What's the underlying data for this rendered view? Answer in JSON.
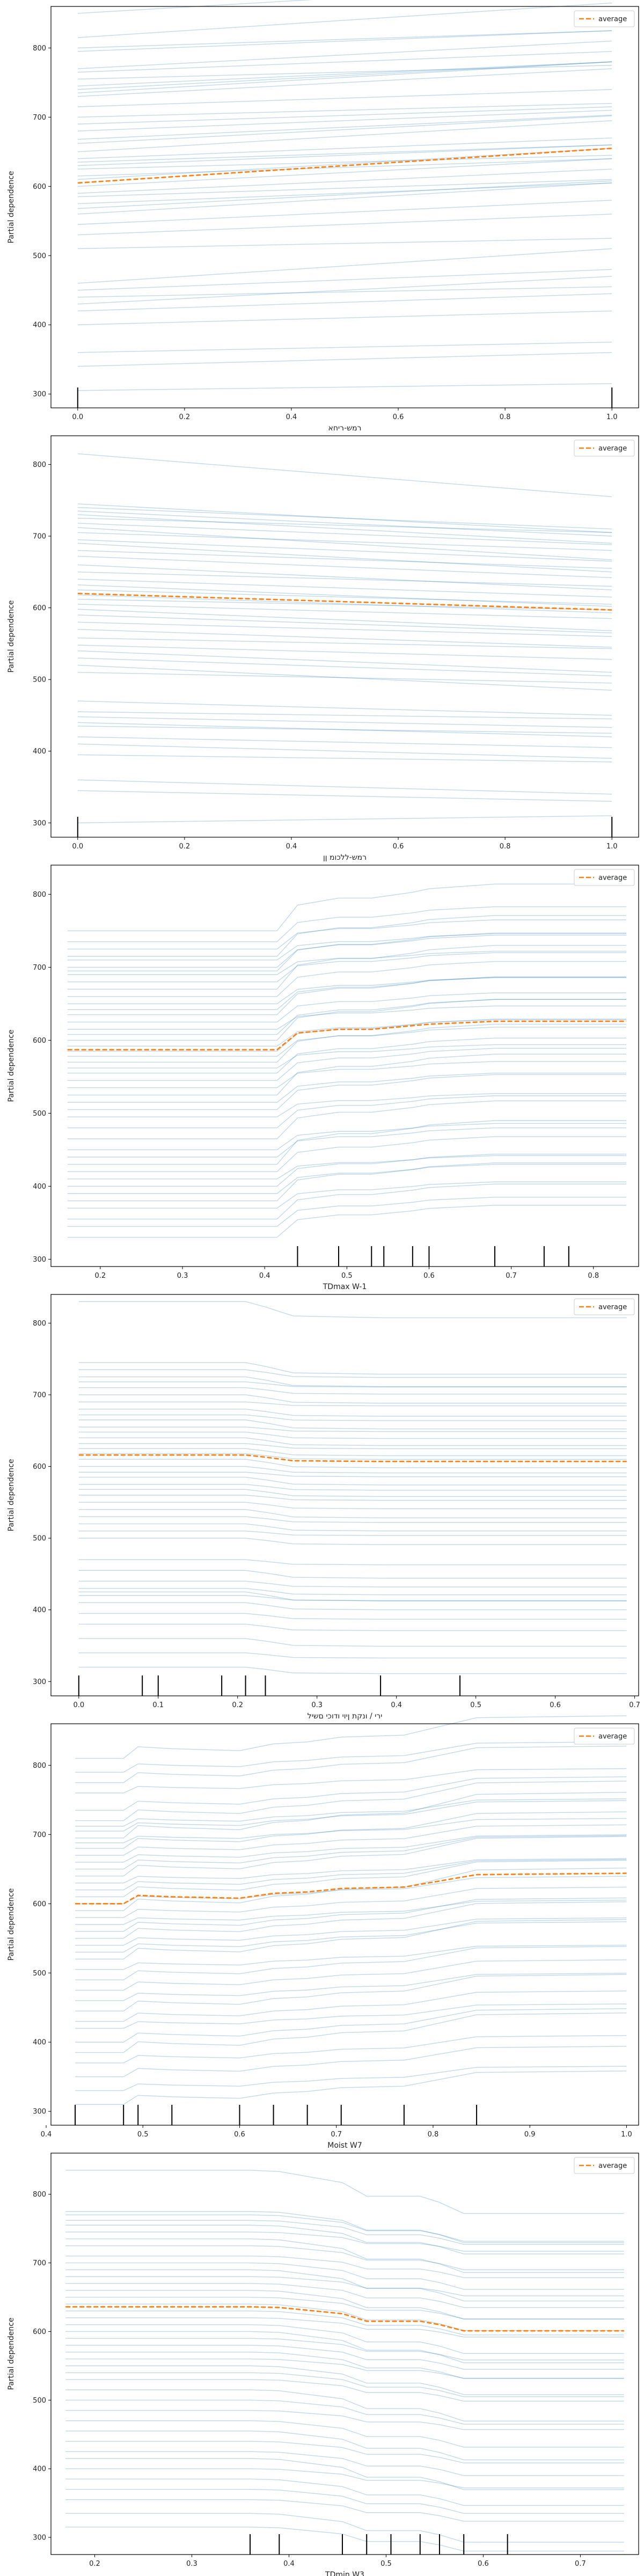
{
  "figure": {
    "background": "#ffffff"
  },
  "colors": {
    "ice": "#1f77b4",
    "average": "#ff7f0e",
    "rug": "#000000",
    "frame": "#000000"
  },
  "chart_data": [
    {
      "type": "line",
      "xlabel": "רמש-ריחא",
      "ylabel": "Partial dependence",
      "xlim": [
        -0.05,
        1.05
      ],
      "ylim": [
        280,
        860
      ],
      "xticks": [
        0.0,
        0.2,
        0.4,
        0.6,
        0.8,
        1.0
      ],
      "xtick_labels": [
        "0.0",
        "0.2",
        "0.4",
        "0.6",
        "0.8",
        "1.0"
      ],
      "yticks": [
        300,
        400,
        500,
        600,
        700,
        800
      ],
      "ytick_labels": [
        "300",
        "400",
        "500",
        "600",
        "700",
        "800"
      ],
      "legend": {
        "entries": [
          "average"
        ],
        "placement": "top-right"
      },
      "x": [
        0.0,
        1.0
      ],
      "ice_start": [
        850,
        815,
        800,
        795,
        770,
        765,
        755,
        745,
        740,
        735,
        730,
        715,
        700,
        690,
        680,
        668,
        662,
        650,
        640,
        635,
        630,
        625,
        615,
        610,
        600,
        590,
        585,
        575,
        568,
        560,
        545,
        530,
        510,
        460,
        450,
        440,
        430,
        420,
        400,
        360,
        340,
        305
      ],
      "ice_slope": [
        45,
        50,
        25,
        30,
        40,
        30,
        20,
        35,
        40,
        45,
        40,
        25,
        20,
        25,
        30,
        35,
        40,
        45,
        30,
        25,
        30,
        20,
        25,
        45,
        40,
        35,
        25,
        30,
        40,
        45,
        35,
        30,
        15,
        50,
        30,
        15,
        40,
        25,
        20,
        15,
        20,
        10
      ],
      "average": [
        605,
        655
      ],
      "rug": [
        0.0,
        1.0
      ]
    },
    {
      "type": "line",
      "xlabel": "רמש-ללכומ ןן",
      "ylabel": "Partial dependence",
      "xlim": [
        -0.05,
        1.05
      ],
      "ylim": [
        280,
        840
      ],
      "xticks": [
        0.0,
        0.2,
        0.4,
        0.6,
        0.8,
        1.0
      ],
      "xtick_labels": [
        "0.0",
        "0.2",
        "0.4",
        "0.6",
        "0.8",
        "1.0"
      ],
      "yticks": [
        300,
        400,
        500,
        600,
        700,
        800
      ],
      "ytick_labels": [
        "300",
        "400",
        "500",
        "600",
        "700",
        "800"
      ],
      "legend": {
        "entries": [
          "average"
        ],
        "placement": "top-right"
      },
      "x": [
        0.0,
        1.0
      ],
      "ice_start": [
        815,
        745,
        740,
        735,
        730,
        725,
        718,
        712,
        705,
        695,
        690,
        680,
        672,
        660,
        650,
        640,
        632,
        625,
        618,
        612,
        605,
        598,
        590,
        580,
        570,
        558,
        548,
        540,
        530,
        520,
        510,
        470,
        455,
        448,
        440,
        435,
        420,
        410,
        395,
        360,
        345,
        300
      ],
      "ice_slope": [
        -60,
        -40,
        -30,
        -35,
        -40,
        -20,
        -30,
        -45,
        -25,
        -30,
        -40,
        -25,
        -30,
        -35,
        -20,
        -25,
        -30,
        -20,
        -25,
        -15,
        -20,
        -30,
        -25,
        -20,
        -25,
        -15,
        -20,
        -30,
        -25,
        -35,
        -15,
        -20,
        -10,
        -15,
        -20,
        -10,
        -15,
        -20,
        -10,
        -20,
        -15,
        10
      ],
      "average": [
        620,
        597
      ],
      "rug": [
        0.0,
        1.0
      ]
    },
    {
      "type": "line",
      "xlabel": "TDmax W-1",
      "ylabel": "Partial dependence",
      "xlim": [
        0.14,
        0.855
      ],
      "ylim": [
        290,
        840
      ],
      "xticks": [
        0.2,
        0.3,
        0.4,
        0.5,
        0.6,
        0.7,
        0.8
      ],
      "xtick_labels": [
        "0.2",
        "0.3",
        "0.4",
        "0.5",
        "0.6",
        "0.7",
        "0.8"
      ],
      "yticks": [
        300,
        400,
        500,
        600,
        700,
        800
      ],
      "ytick_labels": [
        "300",
        "400",
        "500",
        "600",
        "700",
        "800"
      ],
      "legend": {
        "entries": [
          "average"
        ],
        "placement": "top-right"
      },
      "x": [
        0.16,
        0.415,
        0.44,
        0.49,
        0.53,
        0.55,
        0.58,
        0.6,
        0.68,
        0.74,
        0.77,
        0.84
      ],
      "ice_base": [
        750,
        735,
        725,
        715,
        710,
        700,
        695,
        690,
        680,
        670,
        660,
        650,
        642,
        635,
        625,
        615,
        608,
        600,
        592,
        585,
        578,
        570,
        562,
        555,
        545,
        535,
        525,
        515,
        505,
        495,
        480,
        465,
        450,
        440,
        430,
        420,
        410,
        400,
        390,
        380,
        370,
        355,
        345,
        330
      ],
      "ice_shape": [
        0,
        0,
        22,
        28,
        28,
        30,
        33,
        36,
        40,
        40,
        40,
        40
      ],
      "ice_amp": [
        1.6,
        1.2,
        1.0,
        1.4,
        0.9,
        1.1,
        1.3,
        0.8,
        1.0,
        1.5,
        1.2,
        0.9,
        1.1,
        1.3,
        1.0,
        0.8,
        1.2,
        1.4,
        0.9,
        1.1,
        1.0,
        1.3,
        0.8,
        1.2,
        1.1,
        0.9,
        1.4,
        1.0,
        1.2,
        0.8,
        1.1,
        1.3,
        0.9,
        1.0,
        1.5,
        1.2,
        0.8,
        1.1,
        1.0,
        1.3,
        0.9,
        1.2,
        1.0,
        1.1
      ],
      "average": [
        587,
        587,
        610,
        615,
        615,
        617,
        620,
        622,
        626,
        626,
        626,
        626
      ],
      "rug": [
        0.44,
        0.49,
        0.53,
        0.545,
        0.58,
        0.6,
        0.68,
        0.74,
        0.77
      ]
    },
    {
      "type": "line",
      "xlabel": "ירי / ונקת ןיוי ודוכי םשיל",
      "ylabel": "Partial dependence",
      "xlim": [
        -0.035,
        0.705
      ],
      "ylim": [
        280,
        840
      ],
      "xticks": [
        0.0,
        0.1,
        0.2,
        0.3,
        0.4,
        0.5,
        0.6,
        0.7
      ],
      "xtick_labels": [
        "0.0",
        "0.1",
        "0.2",
        "0.3",
        "0.4",
        "0.5",
        "0.6",
        "0.7"
      ],
      "yticks": [
        300,
        400,
        500,
        600,
        700,
        800
      ],
      "ytick_labels": [
        "300",
        "400",
        "500",
        "600",
        "700",
        "800"
      ],
      "legend": {
        "entries": [
          "average"
        ],
        "placement": "top-right"
      },
      "x": [
        0.0,
        0.08,
        0.1,
        0.18,
        0.21,
        0.235,
        0.27,
        0.38,
        0.48,
        0.69
      ],
      "ice_base": [
        830,
        745,
        735,
        725,
        718,
        710,
        700,
        690,
        680,
        672,
        665,
        655,
        648,
        640,
        632,
        625,
        618,
        610,
        600,
        592,
        585,
        575,
        568,
        560,
        550,
        540,
        530,
        520,
        510,
        500,
        470,
        455,
        440,
        430,
        425,
        420,
        410,
        395,
        380,
        360,
        340,
        320
      ],
      "ice_shape": [
        0,
        0,
        0,
        0,
        0,
        -3,
        -8,
        -9,
        -9,
        -9
      ],
      "ice_amp": [
        2.5,
        1.8,
        1.2,
        1.5,
        0.8,
        1.0,
        1.3,
        0.6,
        1.1,
        0.9,
        1.4,
        0.7,
        1.0,
        1.2,
        0.8,
        1.1,
        0.9,
        1.3,
        1.0,
        0.7,
        1.2,
        0.9,
        1.1,
        0.8,
        1.0,
        1.3,
        0.9,
        1.1,
        0.7,
        1.0,
        0.8,
        1.2,
        0.9,
        1.0,
        1.4,
        0.8,
        1.1,
        0.9,
        1.0,
        1.2,
        0.8,
        1.0
      ],
      "average": [
        616,
        616,
        616,
        616,
        616,
        613,
        608,
        607,
        607,
        607
      ],
      "rug": [
        0.0,
        0.08,
        0.1,
        0.18,
        0.21,
        0.235,
        0.38,
        0.48
      ]
    },
    {
      "type": "line",
      "xlabel": "Moist W7",
      "ylabel": "Partial dependence",
      "xlim": [
        0.405,
        1.0125
      ],
      "ylim": [
        280,
        860
      ],
      "xticks": [
        0.4,
        0.5,
        0.6,
        0.7,
        0.8,
        0.9,
        1.0
      ],
      "xtick_labels": [
        "0.4",
        "0.5",
        "0.6",
        "0.7",
        "0.8",
        "0.9",
        "1.0"
      ],
      "yticks": [
        300,
        400,
        500,
        600,
        700,
        800
      ],
      "ytick_labels": [
        "300",
        "400",
        "500",
        "600",
        "700",
        "800"
      ],
      "legend": {
        "entries": [
          "average"
        ],
        "placement": "top-right"
      },
      "x": [
        0.43,
        0.48,
        0.495,
        0.53,
        0.6,
        0.635,
        0.67,
        0.705,
        0.77,
        0.845,
        1.0
      ],
      "ice_base": [
        810,
        790,
        775,
        760,
        735,
        720,
        712,
        705,
        695,
        688,
        680,
        670,
        660,
        650,
        640,
        630,
        620,
        610,
        600,
        590,
        580,
        570,
        560,
        550,
        540,
        530,
        520,
        505,
        490,
        475,
        460,
        445,
        430,
        420,
        400,
        385,
        370,
        350,
        330,
        310
      ],
      "ice_shape": [
        0,
        0,
        12,
        10,
        8,
        15,
        17,
        22,
        24,
        42,
        44
      ],
      "ice_amp": [
        1.4,
        1.0,
        1.2,
        0.8,
        1.1,
        1.3,
        0.9,
        1.0,
        1.5,
        0.8,
        1.2,
        1.0,
        0.9,
        1.1,
        1.3,
        0.8,
        1.0,
        1.2,
        0.9,
        1.4,
        1.0,
        0.8,
        1.1,
        1.2,
        0.9,
        1.0,
        1.3,
        0.8,
        1.1,
        1.0,
        0.9,
        1.2,
        1.0,
        0.8,
        1.1,
        1.3,
        0.9,
        1.0,
        0.8,
        1.1
      ],
      "average": [
        600,
        600,
        612,
        610,
        608,
        615,
        617,
        622,
        624,
        642,
        644
      ],
      "rug": [
        0.43,
        0.48,
        0.495,
        0.53,
        0.6,
        0.635,
        0.67,
        0.705,
        0.77,
        0.845
      ]
    },
    {
      "type": "line",
      "xlabel": "TDmin W3",
      "ylabel": "Partial dependence",
      "xlim": [
        0.155,
        0.76
      ],
      "ylim": [
        275,
        860
      ],
      "xticks": [
        0.2,
        0.3,
        0.4,
        0.5,
        0.6,
        0.7
      ],
      "xtick_labels": [
        "0.2",
        "0.3",
        "0.4",
        "0.5",
        "0.6",
        "0.7"
      ],
      "yticks": [
        300,
        400,
        500,
        600,
        700,
        800
      ],
      "ytick_labels": [
        "300",
        "400",
        "500",
        "600",
        "700",
        "800"
      ],
      "legend": {
        "entries": [
          "average"
        ],
        "placement": "top-right"
      },
      "x": [
        0.17,
        0.36,
        0.39,
        0.455,
        0.48,
        0.505,
        0.535,
        0.555,
        0.58,
        0.625,
        0.745
      ],
      "ice_base": [
        835,
        775,
        770,
        762,
        755,
        745,
        735,
        725,
        710,
        700,
        690,
        680,
        670,
        660,
        650,
        640,
        630,
        620,
        610,
        600,
        590,
        580,
        570,
        560,
        550,
        540,
        530,
        515,
        500,
        485,
        470,
        455,
        440,
        425,
        415,
        400,
        385,
        370,
        355,
        335,
        315
      ],
      "ice_shape": [
        0,
        0,
        -1,
        -10,
        -21,
        -21,
        -21,
        -26,
        -35,
        -35,
        -35
      ],
      "ice_amp": [
        1.8,
        1.3,
        1.1,
        1.0,
        1.2,
        0.8,
        1.4,
        1.0,
        0.9,
        1.1,
        1.3,
        0.8,
        1.0,
        1.2,
        0.9,
        1.1,
        1.0,
        0.8,
        1.2,
        1.3,
        0.9,
        1.0,
        1.1,
        0.8,
        1.2,
        1.0,
        0.9,
        1.3,
        1.0,
        0.8,
        1.1,
        1.2,
        0.9,
        1.0,
        1.3,
        0.8,
        1.1,
        1.0,
        0.9,
        1.2,
        1.0
      ],
      "average": [
        636,
        636,
        635,
        626,
        615,
        615,
        615,
        610,
        601,
        601,
        601
      ],
      "rug": [
        0.36,
        0.39,
        0.455,
        0.48,
        0.505,
        0.535,
        0.555,
        0.58,
        0.625
      ]
    }
  ]
}
